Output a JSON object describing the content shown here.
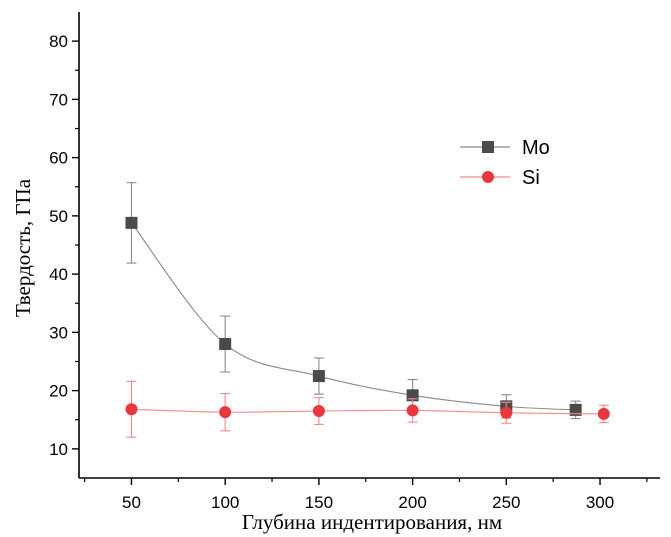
{
  "chart_data": {
    "type": "scatter",
    "title": "",
    "xlabel": "Глубина индентирования, нм",
    "ylabel": "Твердость, ГПа",
    "xlim": [
      22,
      332
    ],
    "ylim": [
      5,
      85
    ],
    "xticks": [
      50,
      100,
      150,
      200,
      250,
      300
    ],
    "yticks": [
      10,
      20,
      30,
      40,
      50,
      60,
      70,
      80
    ],
    "grid": false,
    "legend_position": "top-right",
    "series": [
      {
        "name": "Mo",
        "marker": "square",
        "color": "#4a4a4a",
        "line_color": "#8a8a8a",
        "x": [
          50,
          100,
          150,
          200,
          250,
          287
        ],
        "y": [
          48.8,
          28.0,
          22.5,
          19.2,
          17.3,
          16.7
        ],
        "err": [
          6.9,
          4.8,
          3.1,
          2.7,
          2.0,
          1.5
        ]
      },
      {
        "name": "Si",
        "marker": "circle",
        "color": "#e8383d",
        "line_color": "#f08a8d",
        "x": [
          50,
          100,
          150,
          200,
          250,
          302
        ],
        "y": [
          16.8,
          16.3,
          16.5,
          16.6,
          16.2,
          16.0
        ],
        "err": [
          4.8,
          3.2,
          2.3,
          2.0,
          1.8,
          1.5
        ]
      }
    ]
  }
}
